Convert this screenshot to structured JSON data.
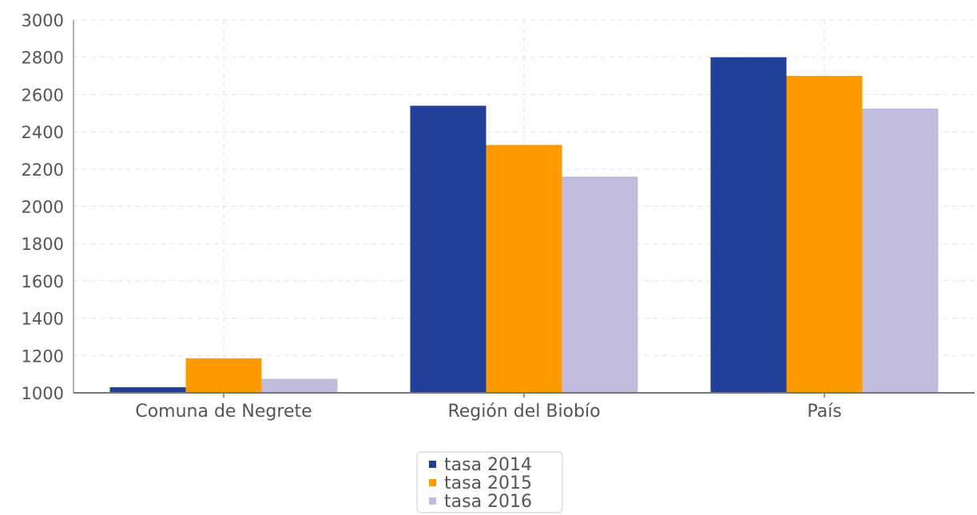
{
  "chart_data": {
    "type": "bar",
    "categories": [
      "Comuna de Negrete",
      "Región del Biobío",
      "País"
    ],
    "series": [
      {
        "name": "tasa 2014",
        "color": "#22409a",
        "values": [
          1030,
          2540,
          2800
        ]
      },
      {
        "name": "tasa 2015",
        "color": "#ff9a00",
        "values": [
          1185,
          2330,
          2700
        ]
      },
      {
        "name": "tasa 2016",
        "color": "#c0bcdc",
        "values": [
          1075,
          2160,
          2525
        ]
      }
    ],
    "yticks": [
      "1000",
      "1200",
      "1400",
      "1600",
      "1800",
      "2000",
      "2200",
      "2400",
      "2600",
      "2800",
      "3000"
    ],
    "ylim": [
      1000,
      3000
    ],
    "grid": true,
    "legend_position": "bottom-center"
  }
}
